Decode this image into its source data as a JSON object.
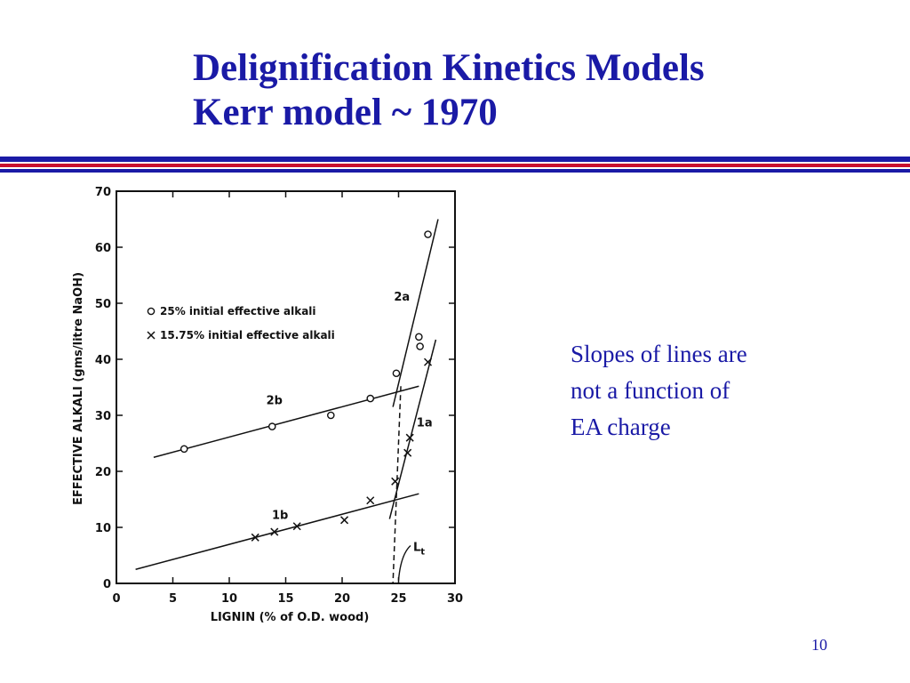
{
  "slide": {
    "title_line1": "Delignification Kinetics Models",
    "title_line2": "Kerr model ~ 1970",
    "note_lines": [
      "Slopes of lines are",
      "not a function of",
      "EA charge"
    ],
    "page_number": "10",
    "colors": {
      "title": "#1a1aa6",
      "rule_blue": "#1a1aa6",
      "rule_red": "#c8102e",
      "ink": "#111111"
    }
  },
  "chart_data": {
    "type": "scatter",
    "xlabel": "LIGNIN  (% of O.D. wood)",
    "ylabel": "EFFECTIVE ALKALI  (gms/litre NaOH)",
    "xlim": [
      0,
      30
    ],
    "ylim": [
      0,
      70
    ],
    "x_ticks": [
      0,
      5,
      10,
      15,
      20,
      25,
      30
    ],
    "y_ticks": [
      0,
      10,
      20,
      30,
      40,
      50,
      60,
      70
    ],
    "grid": false,
    "legend": {
      "placement": "upper-left",
      "entries": [
        {
          "marker": "circle",
          "symbol": "O",
          "label": "25% initial effective alkali"
        },
        {
          "marker": "cross",
          "symbol": "X",
          "label": "15.75% initial effective alkali"
        }
      ]
    },
    "series": [
      {
        "marker": "circle",
        "points": [
          [
            6,
            24
          ],
          [
            13.8,
            28
          ],
          [
            19,
            30
          ],
          [
            22.5,
            33
          ],
          [
            24.8,
            37.5
          ],
          [
            26.8,
            44
          ],
          [
            26.9,
            42.3
          ],
          [
            27.6,
            62.3
          ]
        ]
      },
      {
        "marker": "cross",
        "points": [
          [
            12.3,
            8.2
          ],
          [
            14,
            9.2
          ],
          [
            16,
            10.2
          ],
          [
            20.2,
            11.3
          ],
          [
            22.5,
            14.8
          ],
          [
            24.7,
            18.2
          ],
          [
            25.8,
            23.3
          ],
          [
            26,
            26
          ],
          [
            27.6,
            39.5
          ]
        ]
      }
    ],
    "lines": [
      {
        "label": "2b",
        "style": "solid",
        "from": [
          3.3,
          22.5
        ],
        "to": [
          26.8,
          35.2
        ],
        "label_at": [
          14,
          32
        ]
      },
      {
        "label": "1b",
        "style": "solid",
        "from": [
          1.7,
          2.5
        ],
        "to": [
          26.8,
          16
        ],
        "label_at": [
          14.5,
          11.5
        ]
      },
      {
        "label": "2a",
        "style": "solid",
        "from": [
          24.5,
          31.5
        ],
        "to": [
          28.5,
          65
        ],
        "label_at": [
          25.3,
          50.5
        ]
      },
      {
        "label": "1a",
        "style": "solid",
        "from": [
          24.2,
          11.5
        ],
        "to": [
          28.3,
          43.5
        ],
        "label_at": [
          27.3,
          28
        ]
      },
      {
        "label": "",
        "style": "dashed",
        "from": [
          25.2,
          35.2
        ],
        "to": [
          24.5,
          0
        ]
      }
    ],
    "annotations": [
      {
        "text": "L",
        "sub": "t",
        "at": [
          26.3,
          5.8
        ],
        "arrow_to": [
          25,
          0.6
        ]
      }
    ]
  }
}
